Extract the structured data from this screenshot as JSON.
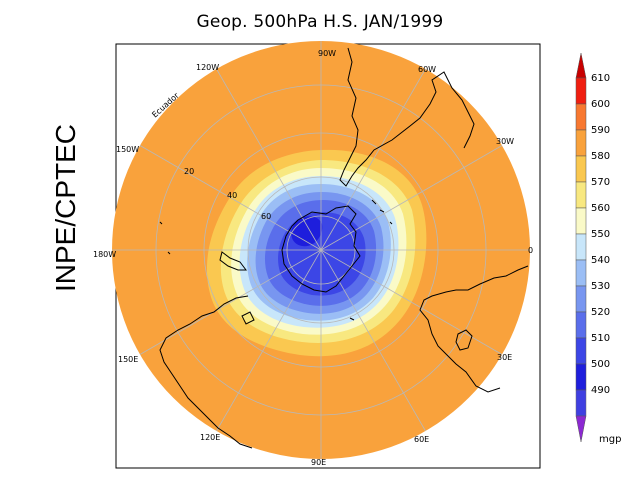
{
  "title": "Geop. 500hPa H.S. JAN/1999",
  "side_label": "INPE/CPTEC",
  "map": {
    "projection": "south-polar-stereographic",
    "variable": "500hPa geopotential height",
    "meridian_labels": [
      "90W",
      "60W",
      "30W",
      "0",
      "30E",
      "60E",
      "90E",
      "120E",
      "150E",
      "180W",
      "150W",
      "120W"
    ],
    "latitude_labels": [
      "20",
      "40",
      "60"
    ],
    "equator_label": "Ecuador"
  },
  "colorbar": {
    "unit": "mgp",
    "levels": [
      610,
      600,
      590,
      580,
      570,
      560,
      550,
      540,
      530,
      520,
      510,
      500,
      490
    ],
    "colors": {
      "above_610": "#c80000",
      "600_610": "#f01e10",
      "590_600": "#f87830",
      "580_590": "#f9a23c",
      "570_580": "#fac850",
      "560_570": "#f8e880",
      "550_560": "#fafac8",
      "540_550": "#c8e6fa",
      "530_540": "#9bbef5",
      "520_530": "#7896f0",
      "510_520": "#5a6eeb",
      "500_510": "#3c46e6",
      "490_500": "#1e1edc",
      "below_490": "#8c28d2"
    }
  }
}
